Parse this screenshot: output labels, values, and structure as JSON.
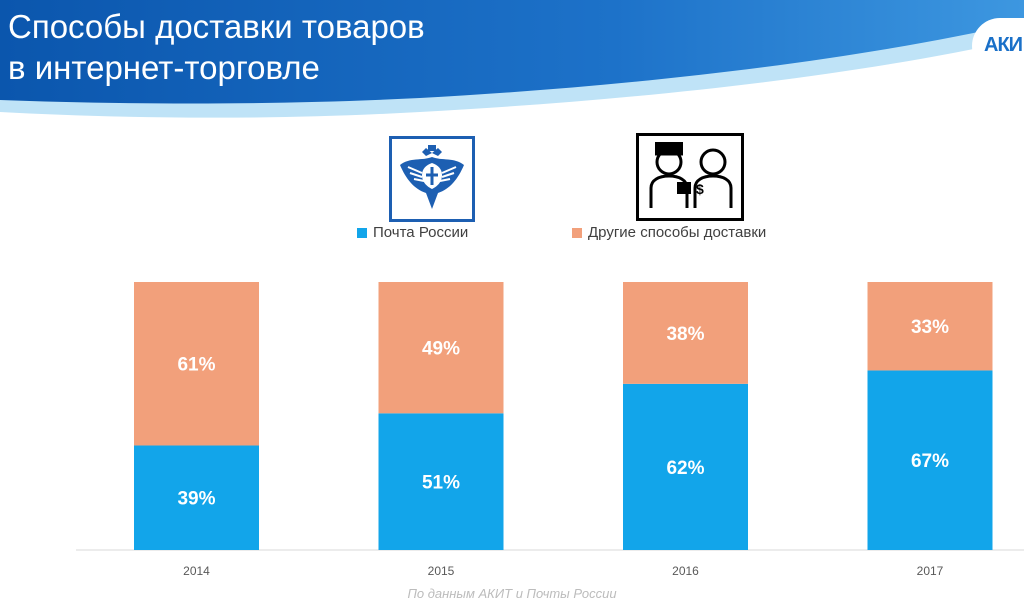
{
  "header": {
    "title_line1": "Способы доставки товаров",
    "title_line2": "в интернет-торговле",
    "logo_text": "АКИ",
    "colors": {
      "primary": "#1a70c8",
      "dark": "#0a4fa3",
      "light": "#7cc2ee"
    }
  },
  "icons": {
    "pochta": "russian-post-eagle-icon",
    "other": "courier-delivery-icon"
  },
  "source_note": "По данным АКИТ и Почты России",
  "chart_data": {
    "type": "bar",
    "stacked": true,
    "categories": [
      "2014",
      "2015",
      "2016",
      "2017"
    ],
    "series": [
      {
        "name": "Почта России",
        "color": "#12a5ea",
        "values": [
          39,
          51,
          62,
          67
        ],
        "labels": [
          "39%",
          "51%",
          "62%",
          "67%"
        ]
      },
      {
        "name": "Другие способы доставки",
        "color": "#f2a07b",
        "values": [
          61,
          49,
          38,
          33
        ],
        "labels": [
          "61%",
          "49%",
          "38%",
          "33%"
        ]
      }
    ],
    "ylim": [
      0,
      100
    ],
    "legend": "top-center",
    "grid": false
  }
}
